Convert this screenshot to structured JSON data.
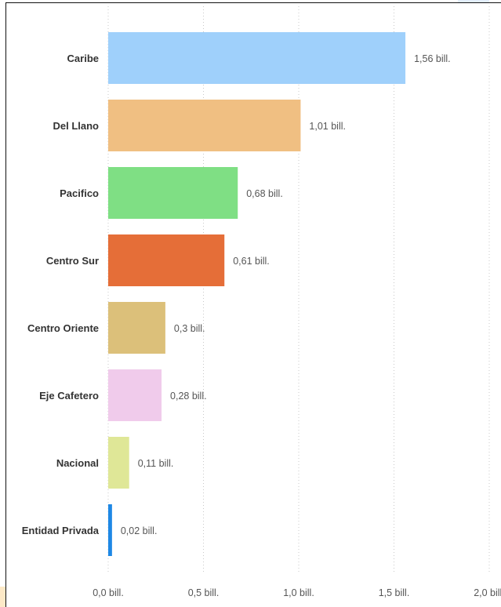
{
  "chart_data": {
    "type": "bar",
    "orientation": "horizontal",
    "categories": [
      "Caribe",
      "Del Llano",
      "Pacifico",
      "Centro Sur",
      "Centro Oriente",
      "Eje Cafetero",
      "Nacional",
      "Entidad Privada"
    ],
    "values": [
      1.56,
      1.01,
      0.68,
      0.61,
      0.3,
      0.28,
      0.11,
      0.02
    ],
    "value_labels": [
      "1,56 bill.",
      "1,01 bill.",
      "0,68 bill.",
      "0,61 bill.",
      "0,3 bill.",
      "0,28 bill.",
      "0,11 bill.",
      "0,02 bill."
    ],
    "colors": [
      "#9fd0fb",
      "#f0bf82",
      "#7fdf84",
      "#e56e38",
      "#dcc07a",
      "#f0cbeb",
      "#dfe797",
      "#1e88e5"
    ],
    "xlim": [
      0,
      2.0
    ],
    "x_ticks": [
      0,
      0.5,
      1.0,
      1.5,
      2.0
    ],
    "x_tick_labels": [
      "0,0 bill.",
      "0,5 bill.",
      "1,0 bill.",
      "1,5 bill.",
      "2,0 bill."
    ],
    "grid": true,
    "title": "",
    "xlabel": "",
    "ylabel": ""
  }
}
